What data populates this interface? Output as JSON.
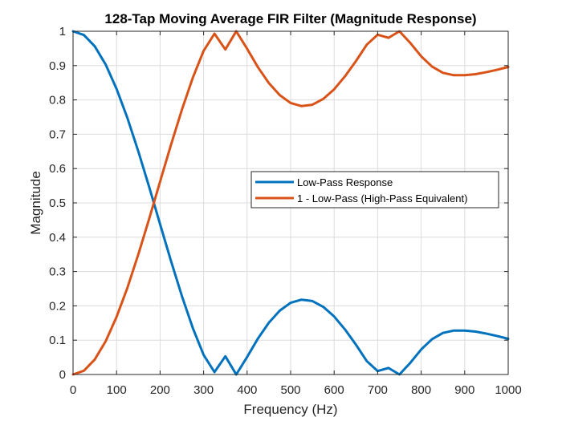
{
  "chart_data": {
    "type": "line",
    "title": "128-Tap Moving Average FIR Filter (Magnitude Response)",
    "xlabel": "Frequency (Hz)",
    "ylabel": "Magnitude",
    "xlim": [
      0,
      1000
    ],
    "ylim": [
      0,
      1
    ],
    "xticks": [
      0,
      100,
      200,
      300,
      400,
      500,
      600,
      700,
      800,
      900,
      1000
    ],
    "xtick_labels": [
      "0",
      "100",
      "200",
      "300",
      "400",
      "500",
      "600",
      "700",
      "800",
      "900",
      "1000"
    ],
    "yticks": [
      0,
      0.1,
      0.2,
      0.3,
      0.4,
      0.5,
      0.6,
      0.7,
      0.8,
      0.9,
      1
    ],
    "ytick_labels": [
      "0",
      "0.1",
      "0.2",
      "0.3",
      "0.4",
      "0.5",
      "0.6",
      "0.7",
      "0.8",
      "0.9",
      "1"
    ],
    "grid": true,
    "legend_position": "center-right",
    "null_frequency_hz": 375,
    "series": [
      {
        "name": "Low-Pass Response",
        "color": "#0072BD",
        "x": [
          0,
          25,
          50,
          75,
          100,
          125,
          150,
          175,
          200,
          225,
          250,
          275,
          300,
          325,
          350,
          375,
          400,
          425,
          450,
          475,
          500,
          525,
          550,
          575,
          600,
          625,
          650,
          675,
          700,
          725,
          750,
          775,
          800,
          825,
          850,
          875,
          900,
          925,
          950,
          975,
          1000
        ],
        "values": [
          1.0,
          0.989,
          0.956,
          0.903,
          0.832,
          0.747,
          0.65,
          0.546,
          0.438,
          0.331,
          0.229,
          0.136,
          0.057,
          0.007,
          0.053,
          0.0,
          0.051,
          0.105,
          0.151,
          0.186,
          0.209,
          0.218,
          0.214,
          0.197,
          0.169,
          0.131,
          0.087,
          0.039,
          0.01,
          0.019,
          0.0,
          0.034,
          0.073,
          0.103,
          0.121,
          0.128,
          0.128,
          0.125,
          0.119,
          0.112,
          0.104
        ]
      },
      {
        "name": "1 - Low-Pass (High-Pass Equivalent)",
        "color": "#D95319",
        "x": [
          0,
          25,
          50,
          75,
          100,
          125,
          150,
          175,
          200,
          225,
          250,
          275,
          300,
          325,
          350,
          375,
          400,
          425,
          450,
          475,
          500,
          525,
          550,
          575,
          600,
          625,
          650,
          675,
          700,
          725,
          750,
          775,
          800,
          825,
          850,
          875,
          900,
          925,
          950,
          975,
          1000
        ],
        "values": [
          0.0,
          0.011,
          0.044,
          0.097,
          0.168,
          0.253,
          0.35,
          0.454,
          0.562,
          0.669,
          0.771,
          0.864,
          0.943,
          0.993,
          0.947,
          1.0,
          0.949,
          0.895,
          0.849,
          0.814,
          0.791,
          0.782,
          0.786,
          0.803,
          0.831,
          0.869,
          0.913,
          0.961,
          0.99,
          0.981,
          1.0,
          0.966,
          0.927,
          0.897,
          0.879,
          0.872,
          0.872,
          0.875,
          0.881,
          0.888,
          0.896
        ]
      }
    ]
  }
}
